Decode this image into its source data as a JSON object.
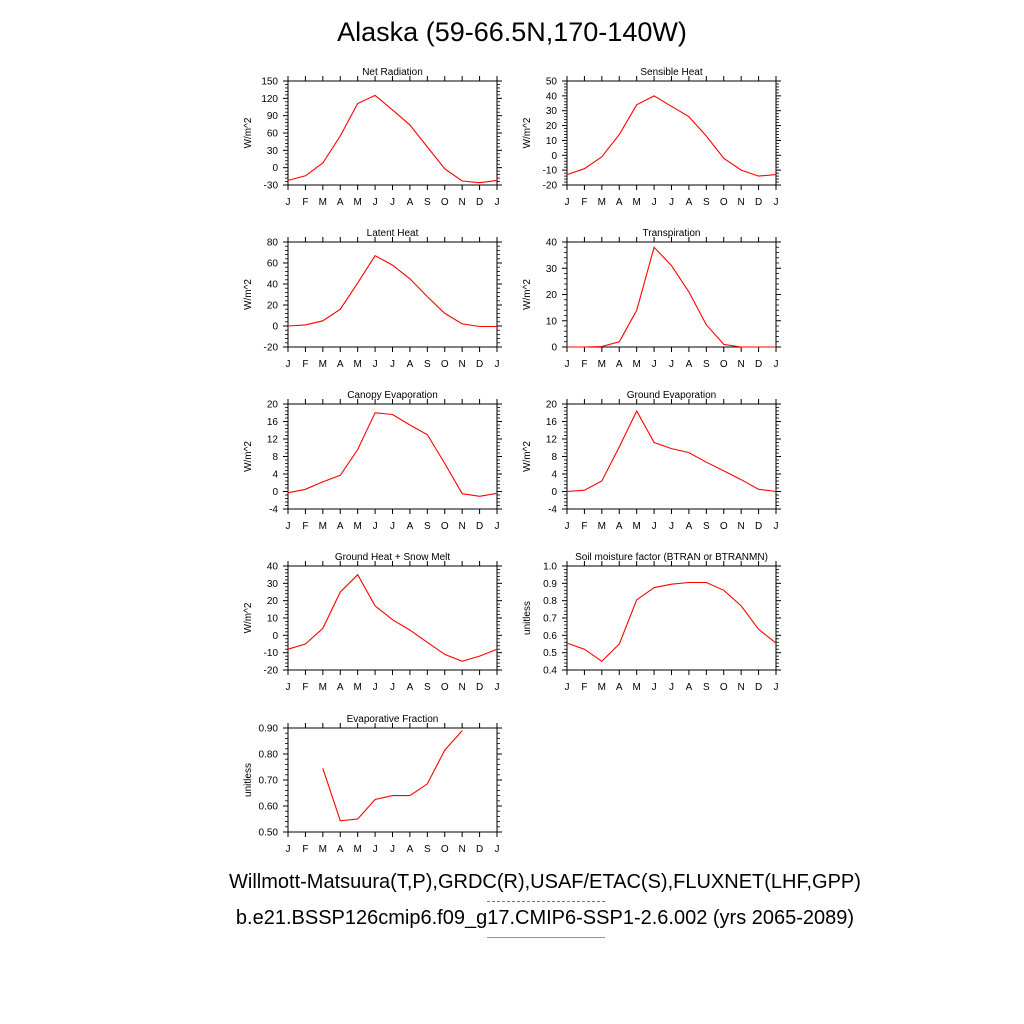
{
  "title": "Alaska (59-66.5N,170-140W)",
  "footer": {
    "observations": "Willmott-Matsuura(T,P),GRDC(R),USAF/ETAC(S),FLUXNET(LHF,GPP)",
    "case": "b.e21.BSSP126cmip6.f09_g17.CMIP6-SSP1-2.6.002 (yrs 2065-2089)",
    "observations_line_color": "#6666ff",
    "case_line_color": "#ff6666"
  },
  "series_color": "#ff0000",
  "chart_data": [
    {
      "type": "line",
      "title": "Net Radiation",
      "ylabel": "W/m^2",
      "categories": [
        "J",
        "F",
        "M",
        "A",
        "M",
        "J",
        "J",
        "A",
        "S",
        "O",
        "N",
        "D",
        "J"
      ],
      "ylim": [
        -30,
        150
      ],
      "yticks": [
        "-30",
        "0",
        "30",
        "60",
        "90",
        "120",
        "150"
      ],
      "values": [
        -22,
        -14,
        8,
        55,
        111,
        125,
        100,
        74,
        36,
        -2,
        -23,
        -26,
        -22
      ]
    },
    {
      "type": "line",
      "title": "Sensible Heat",
      "ylabel": "W/m^2",
      "categories": [
        "J",
        "F",
        "M",
        "A",
        "M",
        "J",
        "J",
        "A",
        "S",
        "O",
        "N",
        "D",
        "J"
      ],
      "ylim": [
        -20,
        50
      ],
      "yticks": [
        "-20",
        "-10",
        "0",
        "10",
        "20",
        "30",
        "40",
        "50"
      ],
      "values": [
        -13,
        -9,
        -1,
        14,
        34,
        40,
        33,
        26,
        13,
        -2,
        -10,
        -14,
        -13
      ]
    },
    {
      "type": "line",
      "title": "Latent Heat",
      "ylabel": "W/m^2",
      "categories": [
        "J",
        "F",
        "M",
        "A",
        "M",
        "J",
        "J",
        "A",
        "S",
        "O",
        "N",
        "D",
        "J"
      ],
      "ylim": [
        -20,
        80
      ],
      "yticks": [
        "-20",
        "0",
        "20",
        "40",
        "60",
        "80"
      ],
      "values": [
        0,
        1,
        5,
        16,
        41,
        67,
        58,
        45,
        28,
        12,
        2,
        -0.5,
        -0.5
      ]
    },
    {
      "type": "line",
      "title": "Transpiration",
      "ylabel": "W/m^2",
      "categories": [
        "J",
        "F",
        "M",
        "A",
        "M",
        "J",
        "J",
        "A",
        "S",
        "O",
        "N",
        "D",
        "J"
      ],
      "ylim": [
        0,
        40
      ],
      "yticks": [
        "0",
        "10",
        "20",
        "30",
        "40"
      ],
      "values": [
        0,
        0,
        0.2,
        2,
        14,
        38,
        31,
        21,
        8.5,
        1,
        0,
        0,
        0
      ]
    },
    {
      "type": "line",
      "title": "Canopy Evaporation",
      "ylabel": "W/m^2",
      "categories": [
        "J",
        "F",
        "M",
        "A",
        "M",
        "J",
        "J",
        "A",
        "S",
        "O",
        "N",
        "D",
        "J"
      ],
      "ylim": [
        -4,
        20
      ],
      "yticks": [
        "-4",
        "0",
        "4",
        "8",
        "12",
        "16",
        "20"
      ],
      "values": [
        -0.3,
        0.5,
        2.2,
        3.7,
        9.6,
        18,
        17.6,
        15.2,
        13,
        6.4,
        -0.5,
        -1.1,
        -0.4
      ]
    },
    {
      "type": "line",
      "title": "Ground Evaporation",
      "ylabel": "W/m^2",
      "categories": [
        "J",
        "F",
        "M",
        "A",
        "M",
        "J",
        "J",
        "A",
        "S",
        "O",
        "N",
        "D",
        "J"
      ],
      "ylim": [
        -4,
        20
      ],
      "yticks": [
        "-4",
        "0",
        "4",
        "8",
        "12",
        "16",
        "20"
      ],
      "values": [
        0,
        0.3,
        2.4,
        10.2,
        18.4,
        11.2,
        9.8,
        8.9,
        6.7,
        4.7,
        2.7,
        0.5,
        0
      ]
    },
    {
      "type": "line",
      "title": "Ground Heat + Snow Melt",
      "ylabel": "W/m^2",
      "categories": [
        "J",
        "F",
        "M",
        "A",
        "M",
        "J",
        "J",
        "A",
        "S",
        "O",
        "N",
        "D",
        "J"
      ],
      "ylim": [
        -20,
        40
      ],
      "yticks": [
        "-20",
        "-10",
        "0",
        "10",
        "20",
        "30",
        "40"
      ],
      "values": [
        -8,
        -5,
        4,
        25,
        35,
        17,
        9,
        3,
        -4,
        -11,
        -15,
        -12,
        -8
      ]
    },
    {
      "type": "line",
      "title": "Soil moisture factor (BTRAN or BTRANMN)",
      "ylabel": "unitless",
      "categories": [
        "J",
        "F",
        "M",
        "A",
        "M",
        "J",
        "J",
        "A",
        "S",
        "O",
        "N",
        "D",
        "J"
      ],
      "ylim": [
        0.4,
        1.0
      ],
      "yticks": [
        "0.4",
        "0.5",
        "0.6",
        "0.7",
        "0.8",
        "0.9",
        "1.0"
      ],
      "values": [
        0.555,
        0.52,
        0.45,
        0.55,
        0.805,
        0.875,
        0.895,
        0.905,
        0.905,
        0.86,
        0.77,
        0.635,
        0.555
      ]
    },
    {
      "type": "line",
      "title": "Evaporative Fraction",
      "ylabel": "unitless",
      "categories": [
        "J",
        "F",
        "M",
        "A",
        "M",
        "J",
        "J",
        "A",
        "S",
        "O",
        "N",
        "D",
        "J"
      ],
      "ylim": [
        0.5,
        0.9
      ],
      "yticks": [
        "0.50",
        "0.60",
        "0.70",
        "0.80",
        "0.90"
      ],
      "values": [
        null,
        null,
        0.745,
        0.543,
        0.55,
        0.625,
        0.64,
        0.64,
        0.685,
        0.815,
        0.89,
        null,
        null
      ]
    }
  ]
}
